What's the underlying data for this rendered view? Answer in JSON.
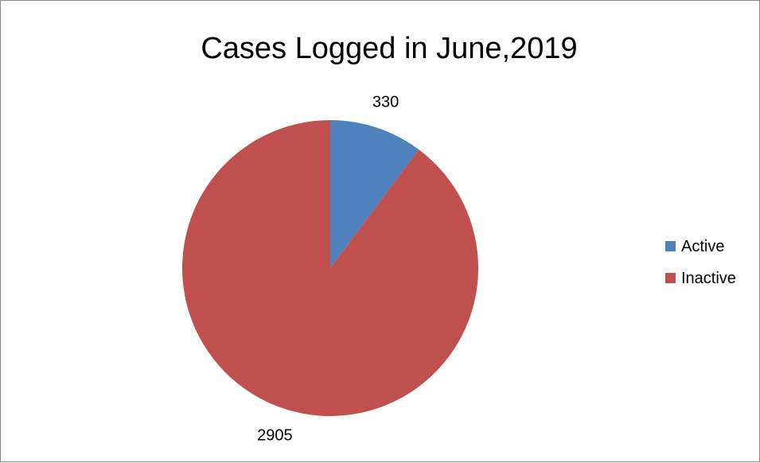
{
  "chart_data": {
    "type": "pie",
    "title": "Cases Logged in June,2019",
    "categories": [
      "Active",
      "Inactive"
    ],
    "values": [
      330,
      2905
    ],
    "data_labels": [
      "330",
      "2905"
    ],
    "colors": [
      "#4f81bd",
      "#c0504d"
    ],
    "legend_position": "right",
    "start_angle": "top",
    "direction": "clockwise"
  }
}
